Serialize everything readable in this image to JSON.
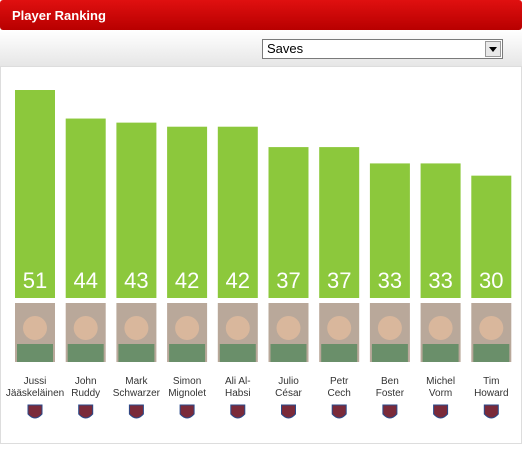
{
  "header": {
    "title": "Player Ranking"
  },
  "dropdown": {
    "selected": "Saves"
  },
  "chart_data": {
    "type": "bar",
    "categories": [
      [
        "Jussi",
        "Jääskeläinen"
      ],
      [
        "John",
        "Ruddy"
      ],
      [
        "Mark",
        "Schwarzer"
      ],
      [
        "Simon",
        "Mignolet"
      ],
      [
        "Ali Al-",
        "Habsi"
      ],
      [
        "Julio",
        "César"
      ],
      [
        "Petr",
        "Cech"
      ],
      [
        "Ben",
        "Foster"
      ],
      [
        "Michel",
        "Vorm"
      ],
      [
        "Tim",
        "Howard"
      ]
    ],
    "values": [
      51,
      44,
      43,
      42,
      42,
      37,
      37,
      33,
      33,
      30
    ],
    "color": "#8cc83c"
  }
}
